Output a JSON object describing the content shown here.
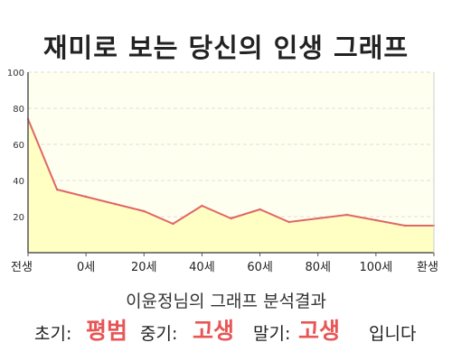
{
  "title": "재미로 보는 당신의 인생 그래프",
  "chart_data": {
    "type": "area",
    "title": "재미로 보는 당신의 인생 그래프",
    "x_tick_labels": [
      "전생",
      "0세",
      "20세",
      "40세",
      "60세",
      "80세",
      "100세",
      "환생"
    ],
    "y_ticks": [
      20,
      40,
      60,
      80,
      100
    ],
    "ylim": [
      0,
      100
    ],
    "grid": true,
    "x": [
      0,
      2,
      4,
      6,
      8,
      10,
      12,
      14,
      16,
      18,
      20,
      22,
      24,
      26,
      28
    ],
    "values": [
      74,
      35,
      31,
      27,
      23,
      16,
      26,
      19,
      24,
      17,
      19,
      21,
      18,
      15,
      15
    ],
    "colors": {
      "line": "#e06666",
      "fill": "#ffffc4",
      "plot_bg": "#fffff0",
      "grid": "#dddddd"
    }
  },
  "summary": {
    "heading": "이윤정님의 그래프 분석결과",
    "early_label": "초기:",
    "early_value": "평범",
    "middle_label": "중기:",
    "middle_value": "고생",
    "late_label": "말기:",
    "late_value": "고생",
    "suffix": "입니다",
    "highlight_color": "#e85555"
  }
}
